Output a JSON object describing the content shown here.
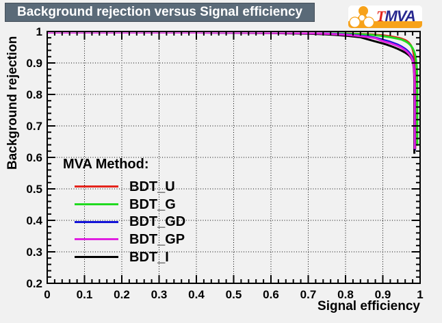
{
  "header": {
    "title": "Background rejection versus Signal efficiency"
  },
  "logo": {
    "t": "T",
    "mva": "MVA",
    "orange": "#f7a21a",
    "t_color": "#e3241d",
    "mva_color": "#28288f"
  },
  "colors": {
    "title_bar_bg": "#5a6a78",
    "canvas_bg": "#f1f1f1",
    "frame_line": "#000000",
    "grid_line": "#000000"
  },
  "axes": {
    "x_label": "Signal efficiency",
    "y_label": "Background rejection"
  },
  "legend": {
    "header": "MVA Method:",
    "items": [
      {
        "label": "BDT_U"
      },
      {
        "label": "BDT_G"
      },
      {
        "label": "BDT_GD"
      },
      {
        "label": "BDT_GP"
      },
      {
        "label": "BDT_I"
      }
    ]
  },
  "chart_data": {
    "type": "line",
    "title": "Background rejection versus Signal efficiency",
    "xlabel": "Signal efficiency",
    "ylabel": "Background rejection",
    "xlim": [
      0,
      1
    ],
    "ylim": [
      0.2,
      1.0
    ],
    "x_tick_values": [
      0,
      0.1,
      0.2,
      0.3,
      0.4,
      0.5,
      0.6,
      0.7,
      0.8,
      0.9,
      1
    ],
    "x_tick_labels": [
      "0",
      "0.1",
      "0.2",
      "0.3",
      "0.4",
      "0.5",
      "0.6",
      "0.7",
      "0.8",
      "0.9",
      "1"
    ],
    "y_tick_values": [
      0.2,
      0.3,
      0.4,
      0.5,
      0.6,
      0.7,
      0.8,
      0.9,
      1
    ],
    "y_tick_labels": [
      "0.2",
      "0.3",
      "0.4",
      "0.5",
      "0.6",
      "0.7",
      "0.8",
      "0.9",
      "1"
    ],
    "minor_tick_step": 0.02,
    "grid": "dotted",
    "legend_position": "bottom-left",
    "series": [
      {
        "name": "BDT_U",
        "color": "#e4231b",
        "points": [
          [
            0,
            1
          ],
          [
            0.1,
            1
          ],
          [
            0.2,
            1
          ],
          [
            0.3,
            1
          ],
          [
            0.4,
            1
          ],
          [
            0.5,
            0.9997
          ],
          [
            0.55,
            0.9995
          ],
          [
            0.6,
            0.9992
          ],
          [
            0.65,
            0.9989
          ],
          [
            0.7,
            0.9985
          ],
          [
            0.75,
            0.998
          ],
          [
            0.8,
            0.997
          ],
          [
            0.84,
            0.9955
          ],
          [
            0.87,
            0.994
          ],
          [
            0.9,
            0.991
          ],
          [
            0.92,
            0.988
          ],
          [
            0.94,
            0.9835
          ],
          [
            0.95,
            0.9805
          ],
          [
            0.96,
            0.976
          ],
          [
            0.965,
            0.9725
          ],
          [
            0.97,
            0.9675
          ],
          [
            0.975,
            0.96
          ],
          [
            0.978,
            0.953
          ],
          [
            0.98,
            0.9465
          ],
          [
            0.982,
            0.937
          ],
          [
            0.9835,
            0.925
          ],
          [
            0.9845,
            0.91
          ],
          [
            0.985,
            0.893
          ],
          [
            0.986,
            0.875
          ],
          [
            0.9865,
            0.845
          ],
          [
            0.987,
            0.79
          ],
          [
            0.987,
            0.63
          ]
        ]
      },
      {
        "name": "BDT_G",
        "color": "#20da20",
        "points": [
          [
            0,
            1
          ],
          [
            0.1,
            1
          ],
          [
            0.2,
            1
          ],
          [
            0.3,
            1
          ],
          [
            0.4,
            1
          ],
          [
            0.5,
            1
          ],
          [
            0.6,
            0.9996
          ],
          [
            0.65,
            0.9993
          ],
          [
            0.7,
            0.9989
          ],
          [
            0.75,
            0.9982
          ],
          [
            0.8,
            0.9965
          ],
          [
            0.84,
            0.9945
          ],
          [
            0.87,
            0.9925
          ],
          [
            0.9,
            0.9885
          ],
          [
            0.92,
            0.985
          ],
          [
            0.94,
            0.9805
          ],
          [
            0.95,
            0.9775
          ],
          [
            0.96,
            0.9725
          ],
          [
            0.965,
            0.969
          ],
          [
            0.97,
            0.9645
          ],
          [
            0.975,
            0.9585
          ],
          [
            0.98,
            0.95
          ],
          [
            0.983,
            0.9425
          ],
          [
            0.985,
            0.936
          ],
          [
            0.987,
            0.9275
          ],
          [
            0.9885,
            0.9175
          ],
          [
            0.99,
            0.9035
          ],
          [
            0.991,
            0.8925
          ],
          [
            0.9915,
            0.8775
          ],
          [
            0.992,
            0.855
          ],
          [
            0.9925,
            0.81
          ],
          [
            0.9925,
            0.64
          ]
        ]
      },
      {
        "name": "BDT_GD",
        "color": "#1414d8",
        "points": [
          [
            0,
            1
          ],
          [
            0.1,
            1
          ],
          [
            0.2,
            1
          ],
          [
            0.3,
            1
          ],
          [
            0.4,
            1
          ],
          [
            0.5,
            0.9996
          ],
          [
            0.6,
            0.999
          ],
          [
            0.65,
            0.9985
          ],
          [
            0.7,
            0.998
          ],
          [
            0.75,
            0.9965
          ],
          [
            0.8,
            0.994
          ],
          [
            0.83,
            0.991
          ],
          [
            0.86,
            0.9875
          ],
          [
            0.88,
            0.9835
          ],
          [
            0.9,
            0.977
          ],
          [
            0.92,
            0.9705
          ],
          [
            0.94,
            0.9615
          ],
          [
            0.95,
            0.9555
          ],
          [
            0.96,
            0.948
          ],
          [
            0.965,
            0.9435
          ],
          [
            0.97,
            0.9375
          ],
          [
            0.975,
            0.9295
          ],
          [
            0.978,
            0.9235
          ],
          [
            0.98,
            0.917
          ],
          [
            0.982,
            0.907
          ],
          [
            0.983,
            0.8985
          ],
          [
            0.984,
            0.8875
          ],
          [
            0.985,
            0.872
          ],
          [
            0.9855,
            0.8475
          ],
          [
            0.986,
            0.8
          ],
          [
            0.986,
            0.625
          ]
        ]
      },
      {
        "name": "BDT_GP",
        "color": "#e020e0",
        "points": [
          [
            0,
            1
          ],
          [
            0.1,
            1
          ],
          [
            0.2,
            1
          ],
          [
            0.3,
            1
          ],
          [
            0.4,
            1
          ],
          [
            0.5,
            0.9995
          ],
          [
            0.55,
            0.9992
          ],
          [
            0.6,
            0.9988
          ],
          [
            0.65,
            0.9982
          ],
          [
            0.7,
            0.9975
          ],
          [
            0.75,
            0.9958
          ],
          [
            0.8,
            0.993
          ],
          [
            0.83,
            0.9895
          ],
          [
            0.86,
            0.9855
          ],
          [
            0.88,
            0.982
          ],
          [
            0.9,
            0.9725
          ],
          [
            0.92,
            0.966
          ],
          [
            0.94,
            0.9575
          ],
          [
            0.95,
            0.9515
          ],
          [
            0.96,
            0.9435
          ],
          [
            0.965,
            0.9385
          ],
          [
            0.97,
            0.9325
          ],
          [
            0.975,
            0.924
          ],
          [
            0.978,
            0.9175
          ],
          [
            0.98,
            0.911
          ],
          [
            0.982,
            0.9
          ],
          [
            0.983,
            0.8905
          ],
          [
            0.984,
            0.8775
          ],
          [
            0.985,
            0.8575
          ],
          [
            0.9855,
            0.82
          ],
          [
            0.9855,
            0.63
          ]
        ]
      },
      {
        "name": "BDT_I",
        "color": "#000000",
        "points": [
          [
            0,
            1
          ],
          [
            0.1,
            1
          ],
          [
            0.2,
            1
          ],
          [
            0.3,
            1
          ],
          [
            0.4,
            0.9999
          ],
          [
            0.5,
            0.9993
          ],
          [
            0.55,
            0.9988
          ],
          [
            0.6,
            0.9982
          ],
          [
            0.65,
            0.9973
          ],
          [
            0.7,
            0.996
          ],
          [
            0.74,
            0.9945
          ],
          [
            0.77,
            0.9925
          ],
          [
            0.8,
            0.99
          ],
          [
            0.82,
            0.9875
          ],
          [
            0.84,
            0.985
          ],
          [
            0.86,
            0.978
          ],
          [
            0.88,
            0.9715
          ],
          [
            0.9,
            0.965
          ],
          [
            0.91,
            0.9615
          ],
          [
            0.92,
            0.9575
          ],
          [
            0.93,
            0.953
          ],
          [
            0.94,
            0.948
          ],
          [
            0.95,
            0.9425
          ],
          [
            0.96,
            0.936
          ],
          [
            0.965,
            0.932
          ],
          [
            0.97,
            0.9275
          ],
          [
            0.975,
            0.9215
          ],
          [
            0.978,
            0.9155
          ],
          [
            0.98,
            0.9095
          ],
          [
            0.981,
            0.9035
          ],
          [
            0.982,
            0.8965
          ],
          [
            0.983,
            0.8865
          ],
          [
            0.984,
            0.869
          ],
          [
            0.9845,
            0.84
          ],
          [
            0.9845,
            0.615
          ]
        ]
      }
    ]
  }
}
